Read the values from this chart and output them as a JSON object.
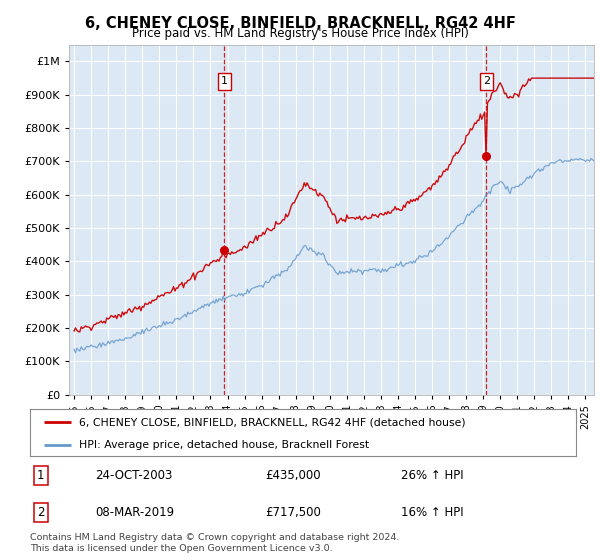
{
  "title": "6, CHENEY CLOSE, BINFIELD, BRACKNELL, RG42 4HF",
  "subtitle": "Price paid vs. HM Land Registry's House Price Index (HPI)",
  "bg_color": "#dce9f5",
  "red_color": "#cc0000",
  "blue_color": "#6699cc",
  "sale1_year": 2003.82,
  "sale1_price": 435000,
  "sale2_year": 2019.19,
  "sale2_price": 717500,
  "legend_label_red": "6, CHENEY CLOSE, BINFIELD, BRACKNELL, RG42 4HF (detached house)",
  "legend_label_blue": "HPI: Average price, detached house, Bracknell Forest",
  "annotation1_label": "24-OCT-2003",
  "annotation1_price": "£435,000",
  "annotation1_pct": "26% ↑ HPI",
  "annotation2_label": "08-MAR-2019",
  "annotation2_price": "£717,500",
  "annotation2_pct": "16% ↑ HPI",
  "footer": "Contains HM Land Registry data © Crown copyright and database right 2024.\nThis data is licensed under the Open Government Licence v3.0.",
  "ylim_min": 0,
  "ylim_max": 1050000
}
